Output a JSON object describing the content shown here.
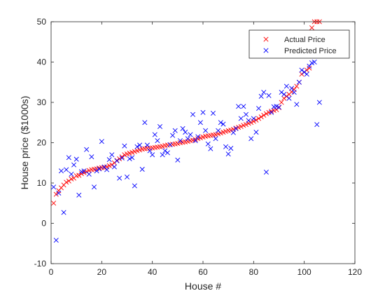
{
  "chart_data": {
    "type": "scatter",
    "xlabel": "House #",
    "ylabel": "House price ($1000s)",
    "xlim": [
      0,
      120
    ],
    "ylim": [
      -10,
      50
    ],
    "xticks": [
      0,
      20,
      40,
      60,
      80,
      100,
      120
    ],
    "yticks": [
      -10,
      0,
      10,
      20,
      30,
      40,
      50
    ],
    "grid": false,
    "legend_position": "top-right",
    "colors": {
      "actual": "#ff0000",
      "predicted": "#0000ff",
      "axes": "#262626",
      "box": "#262626"
    },
    "series": [
      {
        "name": "Actual Price",
        "marker": "x",
        "x": [
          1,
          2,
          3,
          4,
          5,
          6,
          7,
          8,
          9,
          10,
          11,
          12,
          13,
          14,
          15,
          16,
          17,
          18,
          19,
          20,
          21,
          22,
          23,
          24,
          25,
          26,
          27,
          28,
          29,
          30,
          31,
          32,
          33,
          34,
          35,
          36,
          37,
          38,
          39,
          40,
          41,
          42,
          43,
          44,
          45,
          46,
          47,
          48,
          49,
          50,
          51,
          52,
          53,
          54,
          55,
          56,
          57,
          58,
          59,
          60,
          61,
          62,
          63,
          64,
          65,
          66,
          67,
          68,
          69,
          70,
          71,
          72,
          73,
          74,
          75,
          76,
          77,
          78,
          79,
          80,
          81,
          82,
          83,
          84,
          85,
          86,
          87,
          88,
          89,
          90,
          91,
          92,
          93,
          94,
          95,
          96,
          97,
          98,
          99,
          100,
          101,
          102,
          103,
          104,
          105,
          106
        ],
        "y": [
          5.0,
          7.2,
          8.1,
          8.8,
          9.5,
          10.2,
          10.5,
          11.0,
          11.2,
          11.8,
          11.9,
          12.3,
          12.6,
          12.8,
          13.1,
          13.3,
          13.4,
          13.5,
          13.7,
          13.8,
          13.8,
          14.0,
          14.3,
          14.5,
          15.0,
          15.6,
          16.0,
          16.5,
          17.0,
          17.2,
          17.4,
          17.6,
          17.8,
          18.0,
          18.2,
          18.4,
          18.5,
          18.6,
          18.6,
          18.7,
          18.8,
          18.9,
          19.0,
          19.1,
          19.3,
          19.4,
          19.5,
          19.6,
          19.7,
          19.8,
          20.0,
          20.1,
          20.2,
          20.3,
          20.5,
          20.6,
          20.8,
          21.0,
          21.2,
          21.4,
          21.6,
          21.7,
          21.8,
          21.9,
          22.0,
          22.2,
          22.4,
          22.6,
          22.8,
          23.0,
          23.1,
          23.3,
          23.6,
          23.8,
          24.0,
          24.3,
          24.5,
          24.8,
          25.0,
          25.3,
          25.6,
          26.0,
          26.4,
          26.8,
          27.2,
          27.5,
          27.8,
          28.0,
          28.2,
          28.7,
          30.0,
          31.0,
          31.5,
          32.0,
          32.6,
          33.2,
          34.0,
          35.0,
          37.0,
          37.5,
          38.0,
          38.5,
          48.5,
          50.0,
          50.0,
          50.0
        ]
      },
      {
        "name": "Predicted Price",
        "marker": "x",
        "x": [
          1,
          2,
          3,
          4,
          5,
          6,
          7,
          8,
          9,
          10,
          11,
          12,
          13,
          14,
          15,
          16,
          17,
          18,
          19,
          20,
          21,
          22,
          23,
          24,
          25,
          26,
          27,
          28,
          29,
          30,
          31,
          32,
          33,
          34,
          35,
          36,
          37,
          38,
          39,
          40,
          41,
          42,
          43,
          44,
          45,
          46,
          47,
          48,
          49,
          50,
          51,
          52,
          53,
          54,
          55,
          56,
          57,
          58,
          59,
          60,
          61,
          62,
          63,
          64,
          65,
          66,
          67,
          68,
          69,
          70,
          71,
          72,
          73,
          74,
          75,
          76,
          77,
          78,
          79,
          80,
          81,
          82,
          83,
          84,
          85,
          86,
          87,
          88,
          89,
          90,
          91,
          92,
          93,
          94,
          95,
          96,
          97,
          98,
          99,
          100,
          101,
          102,
          103,
          104,
          105,
          106
        ],
        "y": [
          9.0,
          -4.2,
          7.5,
          13.0,
          2.7,
          13.3,
          16.3,
          12.2,
          14.5,
          15.9,
          7.0,
          12.8,
          13.0,
          18.3,
          12.2,
          16.5,
          9.0,
          13.0,
          13.5,
          20.3,
          14.0,
          13.3,
          15.8,
          17.0,
          14.0,
          15.5,
          11.2,
          16.2,
          19.2,
          11.5,
          16.0,
          16.3,
          9.3,
          19.0,
          19.4,
          13.4,
          25.0,
          19.4,
          18.0,
          17.0,
          22.0,
          20.5,
          24.0,
          17.0,
          18.0,
          17.5,
          19.5,
          21.8,
          23.0,
          15.7,
          20.5,
          23.5,
          22.6,
          21.0,
          22.0,
          27.0,
          20.5,
          21.5,
          25.0,
          27.5,
          23.0,
          19.7,
          18.5,
          27.3,
          21.0,
          23.0,
          25.0,
          24.6,
          19.0,
          17.2,
          18.6,
          22.5,
          23.5,
          29.0,
          26.0,
          29.0,
          27.0,
          25.5,
          21.0,
          26.0,
          22.6,
          28.5,
          31.5,
          32.5,
          12.7,
          31.7,
          27.5,
          28.9,
          29.0,
          28.8,
          32.5,
          32.0,
          34.0,
          31.0,
          33.5,
          32.5,
          29.5,
          35.0,
          38.0,
          37.5,
          37.0,
          39.0,
          39.8,
          40.0,
          24.5,
          30.0
        ]
      }
    ]
  }
}
